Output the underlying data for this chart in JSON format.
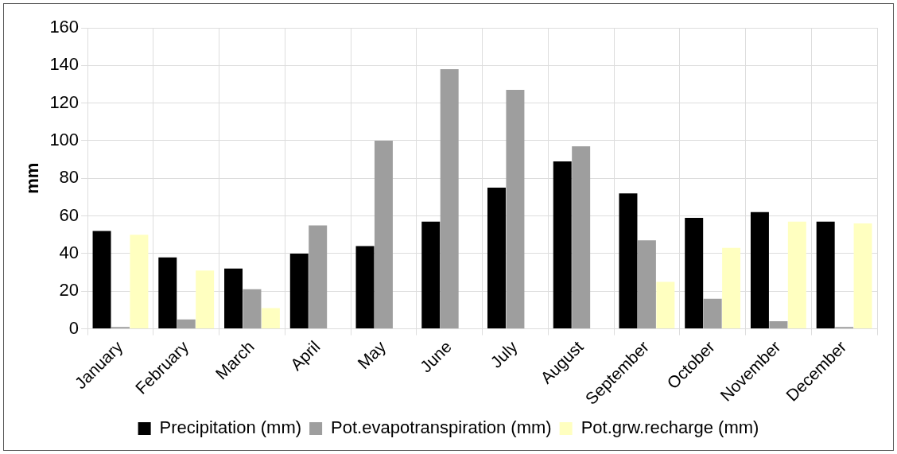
{
  "chart_data": {
    "type": "bar",
    "ylabel": "mm",
    "categories": [
      "January",
      "February",
      "March",
      "April",
      "May",
      "June",
      "July",
      "August",
      "September",
      "October",
      "November",
      "December"
    ],
    "series": [
      {
        "name": "Precipitation (mm)",
        "color": "#000000",
        "values": [
          52,
          38,
          32,
          40,
          44,
          57,
          75,
          89,
          72,
          59,
          62,
          57
        ]
      },
      {
        "name": "Pot.evapotranspiration (mm)",
        "color": "#9e9e9e",
        "values": [
          1,
          5,
          21,
          55,
          100,
          138,
          127,
          97,
          47,
          16,
          4,
          1
        ]
      },
      {
        "name": "Pot.grw.recharge (mm)",
        "color": "#ffffc0",
        "values": [
          50,
          31,
          11,
          null,
          null,
          null,
          null,
          null,
          25,
          43,
          57,
          56
        ]
      }
    ],
    "ylim": [
      0,
      160
    ],
    "yticks": [
      0,
      20,
      40,
      60,
      80,
      100,
      120,
      140,
      160
    ],
    "grid": true,
    "legend": "bottom"
  }
}
